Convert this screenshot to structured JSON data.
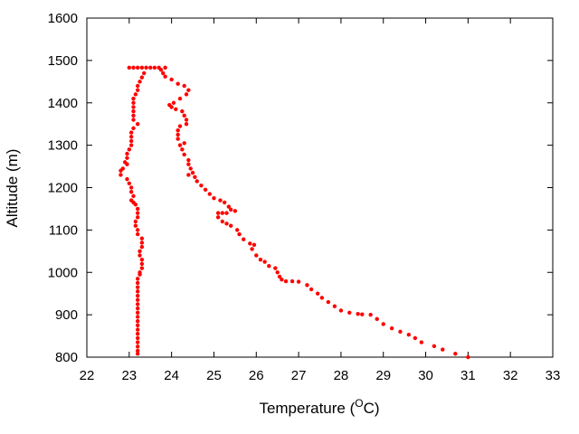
{
  "chart_data": {
    "type": "scatter",
    "title": "",
    "xlabel": "Temperature (",
    "xlabel_sup": "O",
    "xlabel_suffix": "C)",
    "ylabel": "Altitude (m)",
    "xlim": [
      22,
      33
    ],
    "ylim": [
      800,
      1600
    ],
    "xticks": [
      "22",
      "23",
      "24",
      "25",
      "26",
      "27",
      "28",
      "29",
      "30",
      "31",
      "32",
      "33"
    ],
    "yticks": [
      "800",
      "900",
      "1000",
      "1100",
      "1200",
      "1300",
      "1400",
      "1500",
      "1600"
    ],
    "grid": false,
    "legend": "none",
    "marker_color": "#ff0000",
    "series": [
      {
        "points": [
          [
            31.0,
            800
          ],
          [
            30.7,
            808
          ],
          [
            30.4,
            818
          ],
          [
            30.2,
            826
          ],
          [
            29.9,
            835
          ],
          [
            29.75,
            845
          ],
          [
            29.6,
            853
          ],
          [
            29.4,
            860
          ],
          [
            29.2,
            868
          ],
          [
            29.0,
            878
          ],
          [
            28.85,
            890
          ],
          [
            28.7,
            900
          ],
          [
            28.5,
            901
          ],
          [
            28.4,
            902
          ],
          [
            28.2,
            905
          ],
          [
            28.0,
            910
          ],
          [
            27.85,
            920
          ],
          [
            27.7,
            930
          ],
          [
            27.55,
            940
          ],
          [
            27.45,
            950
          ],
          [
            27.3,
            960
          ],
          [
            27.2,
            970
          ],
          [
            27.0,
            978
          ],
          [
            26.85,
            979
          ],
          [
            26.7,
            979
          ],
          [
            26.6,
            983
          ],
          [
            26.55,
            990
          ],
          [
            26.5,
            1000
          ],
          [
            26.45,
            1010
          ],
          [
            26.3,
            1015
          ],
          [
            26.2,
            1025
          ],
          [
            26.1,
            1030
          ],
          [
            26.0,
            1040
          ],
          [
            25.9,
            1055
          ],
          [
            25.95,
            1065
          ],
          [
            25.85,
            1068
          ],
          [
            25.7,
            1078
          ],
          [
            25.6,
            1090
          ],
          [
            25.55,
            1100
          ],
          [
            25.4,
            1110
          ],
          [
            25.3,
            1115
          ],
          [
            25.2,
            1120
          ],
          [
            25.1,
            1130
          ],
          [
            25.1,
            1140
          ],
          [
            25.2,
            1140
          ],
          [
            25.3,
            1140
          ],
          [
            25.4,
            1148
          ],
          [
            25.5,
            1145
          ],
          [
            25.35,
            1155
          ],
          [
            25.25,
            1165
          ],
          [
            25.15,
            1170
          ],
          [
            25.0,
            1175
          ],
          [
            24.9,
            1185
          ],
          [
            24.8,
            1195
          ],
          [
            24.7,
            1205
          ],
          [
            24.6,
            1215
          ],
          [
            24.55,
            1225
          ],
          [
            24.5,
            1235
          ],
          [
            24.4,
            1230
          ],
          [
            24.45,
            1245
          ],
          [
            24.4,
            1255
          ],
          [
            24.4,
            1265
          ],
          [
            24.3,
            1278
          ],
          [
            24.25,
            1290
          ],
          [
            24.2,
            1300
          ],
          [
            24.3,
            1305
          ],
          [
            24.15,
            1315
          ],
          [
            24.15,
            1325
          ],
          [
            24.15,
            1335
          ],
          [
            24.2,
            1345
          ],
          [
            24.35,
            1350
          ],
          [
            24.35,
            1360
          ],
          [
            24.3,
            1370
          ],
          [
            24.25,
            1380
          ],
          [
            24.1,
            1385
          ],
          [
            24.0,
            1390
          ],
          [
            23.95,
            1395
          ],
          [
            24.05,
            1400
          ],
          [
            24.2,
            1410
          ],
          [
            24.35,
            1420
          ],
          [
            24.4,
            1430
          ],
          [
            24.3,
            1440
          ],
          [
            24.15,
            1445
          ],
          [
            24.0,
            1455
          ],
          [
            23.85,
            1462
          ],
          [
            23.8,
            1470
          ],
          [
            23.75,
            1478
          ],
          [
            23.7,
            1483
          ],
          [
            23.85,
            1483
          ],
          [
            23.6,
            1483
          ],
          [
            23.5,
            1483
          ],
          [
            23.4,
            1483
          ],
          [
            23.3,
            1483
          ],
          [
            23.2,
            1483
          ],
          [
            23.1,
            1483
          ],
          [
            23.0,
            1483
          ],
          [
            23.35,
            1470
          ],
          [
            23.3,
            1460
          ],
          [
            23.25,
            1450
          ],
          [
            23.2,
            1440
          ],
          [
            23.2,
            1430
          ],
          [
            23.15,
            1420
          ],
          [
            23.1,
            1410
          ],
          [
            23.1,
            1400
          ],
          [
            23.1,
            1390
          ],
          [
            23.1,
            1380
          ],
          [
            23.1,
            1370
          ],
          [
            23.1,
            1360
          ],
          [
            23.2,
            1350
          ],
          [
            23.1,
            1340
          ],
          [
            23.05,
            1330
          ],
          [
            23.05,
            1320
          ],
          [
            23.05,
            1310
          ],
          [
            23.05,
            1300
          ],
          [
            23.0,
            1290
          ],
          [
            22.95,
            1280
          ],
          [
            22.95,
            1270
          ],
          [
            22.9,
            1260
          ],
          [
            22.95,
            1255
          ],
          [
            22.85,
            1245
          ],
          [
            22.8,
            1240
          ],
          [
            22.8,
            1230
          ],
          [
            22.95,
            1220
          ],
          [
            23.0,
            1210
          ],
          [
            23.05,
            1200
          ],
          [
            23.05,
            1190
          ],
          [
            23.1,
            1180
          ],
          [
            23.05,
            1170
          ],
          [
            23.1,
            1165
          ],
          [
            23.15,
            1160
          ],
          [
            23.2,
            1150
          ],
          [
            23.2,
            1140
          ],
          [
            23.2,
            1130
          ],
          [
            23.15,
            1120
          ],
          [
            23.15,
            1110
          ],
          [
            23.2,
            1100
          ],
          [
            23.2,
            1090
          ],
          [
            23.3,
            1080
          ],
          [
            23.3,
            1070
          ],
          [
            23.3,
            1060
          ],
          [
            23.25,
            1050
          ],
          [
            23.25,
            1040
          ],
          [
            23.3,
            1030
          ],
          [
            23.3,
            1020
          ],
          [
            23.3,
            1010
          ],
          [
            23.25,
            1000
          ],
          [
            23.25,
            995
          ],
          [
            23.2,
            985
          ],
          [
            23.2,
            975
          ],
          [
            23.2,
            965
          ],
          [
            23.2,
            955
          ],
          [
            23.2,
            945
          ],
          [
            23.2,
            935
          ],
          [
            23.2,
            925
          ],
          [
            23.2,
            915
          ],
          [
            23.2,
            905
          ],
          [
            23.2,
            895
          ],
          [
            23.2,
            885
          ],
          [
            23.2,
            875
          ],
          [
            23.2,
            865
          ],
          [
            23.2,
            855
          ],
          [
            23.2,
            845
          ],
          [
            23.2,
            835
          ],
          [
            23.2,
            825
          ],
          [
            23.2,
            815
          ],
          [
            23.2,
            808
          ]
        ]
      }
    ]
  }
}
